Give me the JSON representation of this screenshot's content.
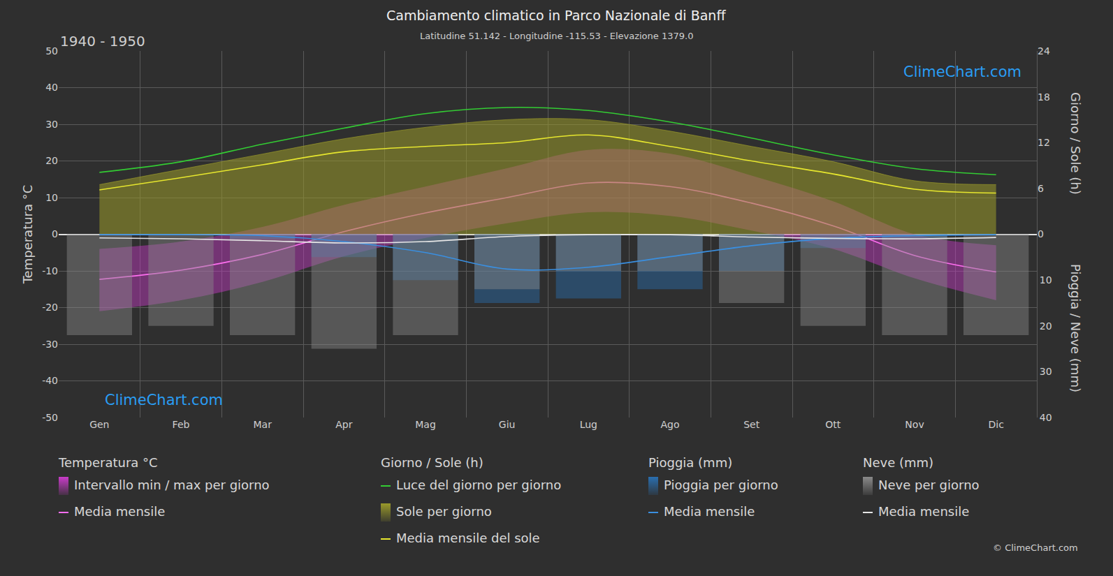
{
  "chart_data": {
    "type": "line",
    "title": "Cambiamento climatico in Parco Nazionale di Banff",
    "subtitle": "Latitudine 51.142 - Longitudine -115.53 - Elevazione 1379.0",
    "period": "1940 - 1950",
    "watermark": "ClimeChart.com",
    "copyright": "© ClimeChart.com",
    "categories": [
      "Gen",
      "Feb",
      "Mar",
      "Apr",
      "Mag",
      "Giu",
      "Lug",
      "Ago",
      "Set",
      "Ott",
      "Nov",
      "Dic"
    ],
    "y_label": "Temperatura °C",
    "y2_label": "Giorno / Sole (h)",
    "y3_label": "Pioggia / Neve (mm)",
    "ylim": [
      -50,
      50
    ],
    "yticks": [
      -50,
      -40,
      -30,
      -20,
      -10,
      0,
      10,
      20,
      30,
      40,
      50
    ],
    "y2lim": [
      0,
      24
    ],
    "y2ticks": [
      0,
      6,
      12,
      18,
      24
    ],
    "y3lim": [
      0,
      40
    ],
    "y3ticks": [
      10,
      20,
      30,
      40
    ],
    "grid": true,
    "series": [
      {
        "name": "Intervallo min / max per giorno",
        "group": "Temperatura °C",
        "type": "band",
        "axis": "y",
        "color": "#c93cc9",
        "low": [
          -21,
          -18,
          -13,
          -6,
          -1,
          3,
          6,
          5,
          1,
          -4,
          -12,
          -18
        ],
        "high": [
          -4,
          -2,
          2,
          8,
          13,
          18,
          23,
          22,
          16,
          9,
          0,
          -3
        ]
      },
      {
        "name": "Media mensile",
        "group": "Temperatura °C",
        "type": "line",
        "axis": "y",
        "color": "#ff6ef0",
        "values": [
          -12.3,
          -9.8,
          -5.5,
          0.7,
          5.8,
          10,
          14,
          13,
          8.5,
          2.3,
          -5.8,
          -10.3
        ]
      },
      {
        "name": "Luce del giorno per giorno",
        "group": "Giorno / Sole (h)",
        "type": "line",
        "axis": "y2",
        "color": "#33cc33",
        "values": [
          8.1,
          9.5,
          11.8,
          13.9,
          15.8,
          16.6,
          16.2,
          14.7,
          12.6,
          10.4,
          8.6,
          7.8
        ]
      },
      {
        "name": "Sole per giorno",
        "group": "Giorno / Sole (h)",
        "type": "area",
        "axis": "y2",
        "color": "#9a9a2a",
        "values": [
          6.5,
          8.5,
          10.5,
          12.5,
          14,
          15,
          15,
          13.5,
          11.5,
          9.5,
          7,
          6.5
        ]
      },
      {
        "name": "Media mensile del sole",
        "group": "Giorno / Sole (h)",
        "type": "line",
        "axis": "y2",
        "color": "#e6e62e",
        "values": [
          5.8,
          7.4,
          9.1,
          10.8,
          11.5,
          12,
          13,
          11.5,
          9.6,
          7.9,
          5.9,
          5.4
        ]
      },
      {
        "name": "Pioggia per giorno",
        "group": "Pioggia (mm)",
        "type": "bar",
        "axis": "y3",
        "color": "#2a6fb0",
        "values": [
          0,
          0,
          1,
          5,
          10,
          15,
          14,
          12,
          8,
          3,
          1,
          0
        ]
      },
      {
        "name": "Media mensile",
        "group": "Pioggia (mm)",
        "type": "line",
        "axis": "y3",
        "color": "#3a8fe0",
        "values": [
          0.1,
          0.1,
          0.3,
          1.6,
          4.0,
          7.6,
          7.2,
          4.9,
          2.5,
          0.9,
          0.3,
          0.1
        ]
      },
      {
        "name": "Neve per giorno",
        "group": "Neve (mm)",
        "type": "bar",
        "axis": "y3",
        "color": "#8a8a8a",
        "values": [
          22,
          20,
          22,
          25,
          22,
          12,
          8,
          8,
          15,
          20,
          22,
          22
        ]
      },
      {
        "name": "Media mensile",
        "group": "Neve (mm)",
        "type": "line",
        "axis": "y3",
        "color": "#e6e6e6",
        "values": [
          0.8,
          1.0,
          1.4,
          1.9,
          1.6,
          0.5,
          0.1,
          0.1,
          0.6,
          0.9,
          1.0,
          0.7
        ]
      }
    ]
  }
}
